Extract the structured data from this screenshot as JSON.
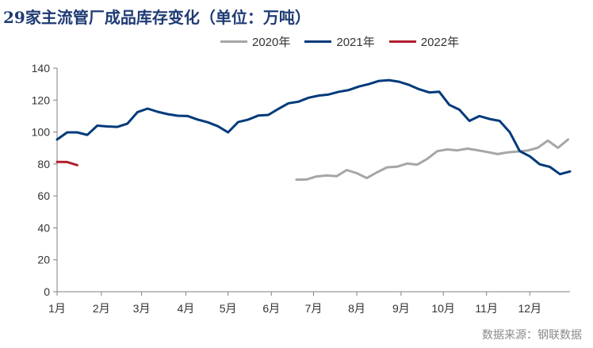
{
  "chart_data": {
    "type": "line",
    "title": "29家主流管厂成品库存变化（单位：万吨）",
    "source": "数据来源：钢联数据",
    "xlabel": "",
    "ylabel": "",
    "ylim": [
      0,
      140
    ],
    "yticks": [
      0,
      20,
      40,
      60,
      80,
      100,
      120,
      140
    ],
    "x_unit": "week",
    "x_range": [
      1,
      52
    ],
    "month_ticks": [
      {
        "label": "1月",
        "week": 1
      },
      {
        "label": "2月",
        "week": 5.4
      },
      {
        "label": "3月",
        "week": 9.4
      },
      {
        "label": "4月",
        "week": 13.8
      },
      {
        "label": "5月",
        "week": 18
      },
      {
        "label": "6月",
        "week": 22.3
      },
      {
        "label": "7月",
        "week": 26.5
      },
      {
        "label": "8月",
        "week": 30.8
      },
      {
        "label": "9月",
        "week": 35.2
      },
      {
        "label": "10月",
        "week": 39.4
      },
      {
        "label": "11月",
        "week": 43.7
      },
      {
        "label": "12月",
        "week": 48
      }
    ],
    "grid": false,
    "legend_position": "top",
    "series": [
      {
        "name": "2020年",
        "color": "#a6a6a6",
        "start_week": 24.8,
        "values": [
          70.2,
          70.3,
          72.2,
          72.8,
          72.4,
          76.2,
          74.2,
          71.2,
          74.7,
          77.9,
          78.3,
          80.3,
          79.6,
          83.2,
          88.0,
          89.1,
          88.5,
          89.6,
          88.6,
          87.5,
          86.2,
          87.3,
          87.8,
          88.4,
          90.2,
          94.6,
          90.1,
          95.3
        ]
      },
      {
        "name": "2021年",
        "color": "#003a7a",
        "start_week": 1,
        "values": [
          95.3,
          99.8,
          99.8,
          98.2,
          104.0,
          103.5,
          103.2,
          105.3,
          112.5,
          114.7,
          112.7,
          111.2,
          110.2,
          110.0,
          107.8,
          106.1,
          103.6,
          99.8,
          106.3,
          107.8,
          110.3,
          110.7,
          114.5,
          118.0,
          119.0,
          121.5,
          122.8,
          123.5,
          125.2,
          126.3,
          128.5,
          130.0,
          132.0,
          132.5,
          131.5,
          129.5,
          126.8,
          124.8,
          125.2,
          117.0,
          114.0,
          107.0,
          110.0,
          108.2,
          107.0,
          100.0,
          88.0,
          84.8,
          79.8,
          78.2,
          73.6,
          75.3
        ]
      },
      {
        "name": "2022年",
        "color": "#b01f2e",
        "start_week": 1,
        "values": [
          81.3,
          81.2,
          79.3
        ]
      }
    ]
  }
}
